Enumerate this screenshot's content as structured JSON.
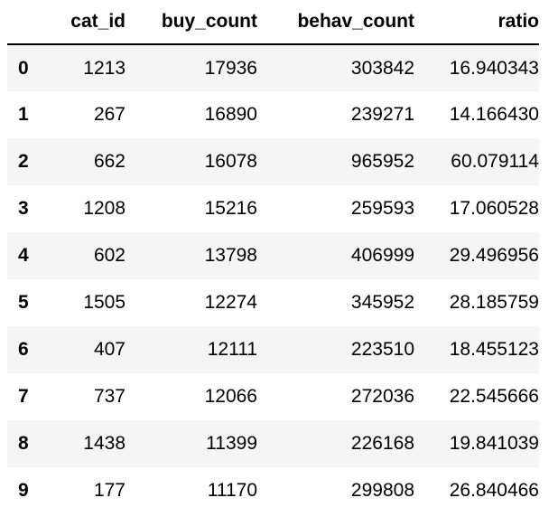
{
  "table": {
    "index_header": "",
    "columns": [
      "cat_id",
      "buy_count",
      "behav_count",
      "ratio"
    ],
    "rows": [
      {
        "index": "0",
        "cat_id": "1213",
        "buy_count": "17936",
        "behav_count": "303842",
        "ratio": "16.940343"
      },
      {
        "index": "1",
        "cat_id": "267",
        "buy_count": "16890",
        "behav_count": "239271",
        "ratio": "14.166430"
      },
      {
        "index": "2",
        "cat_id": "662",
        "buy_count": "16078",
        "behav_count": "965952",
        "ratio": "60.079114"
      },
      {
        "index": "3",
        "cat_id": "1208",
        "buy_count": "15216",
        "behav_count": "259593",
        "ratio": "17.060528"
      },
      {
        "index": "4",
        "cat_id": "602",
        "buy_count": "13798",
        "behav_count": "406999",
        "ratio": "29.496956"
      },
      {
        "index": "5",
        "cat_id": "1505",
        "buy_count": "12274",
        "behav_count": "345952",
        "ratio": "28.185759"
      },
      {
        "index": "6",
        "cat_id": "407",
        "buy_count": "12111",
        "behav_count": "223510",
        "ratio": "18.455123"
      },
      {
        "index": "7",
        "cat_id": "737",
        "buy_count": "12066",
        "behav_count": "272036",
        "ratio": "22.545666"
      },
      {
        "index": "8",
        "cat_id": "1438",
        "buy_count": "11399",
        "behav_count": "226168",
        "ratio": "19.841039"
      },
      {
        "index": "9",
        "cat_id": "177",
        "buy_count": "11170",
        "behav_count": "299808",
        "ratio": "26.840466"
      }
    ]
  }
}
